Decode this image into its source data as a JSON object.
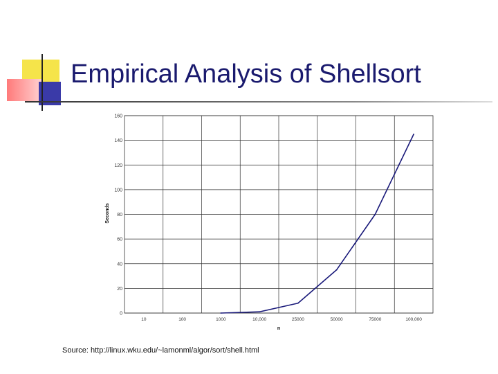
{
  "slide": {
    "title": "Empirical Analysis of Shellsort",
    "source": "Source: http://linux.wku.edu/~lamonml/algor/sort/shell.html",
    "colors": {
      "title": "#1a1a6e",
      "line": "#1a1a7a",
      "grid": "#333333"
    }
  },
  "chart_data": {
    "type": "line",
    "title": "",
    "xlabel": "n",
    "ylabel": "Seconds",
    "categories": [
      "10",
      "100",
      "1000",
      "10,000",
      "25000",
      "50000",
      "75000",
      "100,000"
    ],
    "y_ticks": [
      "0",
      "20",
      "40",
      "60",
      "80",
      "100",
      "120",
      "140",
      "160"
    ],
    "ylim": [
      0,
      160
    ],
    "grid": true,
    "legend": "none",
    "series": [
      {
        "name": "",
        "values": [
          0,
          0,
          0,
          1,
          8,
          35,
          80,
          145
        ]
      }
    ]
  }
}
